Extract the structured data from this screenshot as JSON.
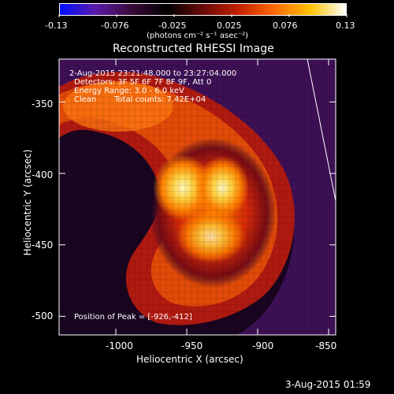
{
  "colorbar": {
    "tick_labels": [
      "-0.13",
      "-0.076",
      "-0.025",
      "0.025",
      "0.076",
      "0.13"
    ],
    "unit_label": "(photons cm⁻² s⁻¹ asec⁻²)",
    "colormap": [
      "#0010ff",
      "#5a1aa8",
      "#3a0a3a",
      "#000000",
      "#6a0a0a",
      "#c42000",
      "#ff6a00",
      "#ffc000",
      "#ffffff"
    ]
  },
  "title": "Reconstructed RHESSI Image",
  "info": {
    "time_range": "2-Aug-2015 23:21:48.000 to 23:27:04.000",
    "detectors": "Detectors: 3F 5F 6F 7F 8F 9F, Att 0",
    "energy_range": "Energy Range: 3.0 - 6.0 keV",
    "method": "Clean",
    "total_counts": "Total counts: 7.42E+04",
    "peak_position": "Position of Peak = [-926,-412]"
  },
  "axes": {
    "xlabel": "Heliocentric X (arcsec)",
    "ylabel": "Heliocentric Y (arcsec)",
    "x_ticks": [
      "-1000",
      "-950",
      "-900",
      "-850"
    ],
    "y_ticks": [
      "-350",
      "-400",
      "-450",
      "-500"
    ],
    "xlim": [
      -1040,
      -845
    ],
    "ylim": [
      -513,
      -320
    ]
  },
  "footer_date": "3-Aug-2015 01:59",
  "image_colors": {
    "background": "#3d1055",
    "hot_core": "#ffe680",
    "limb_line": "#ffffff"
  }
}
